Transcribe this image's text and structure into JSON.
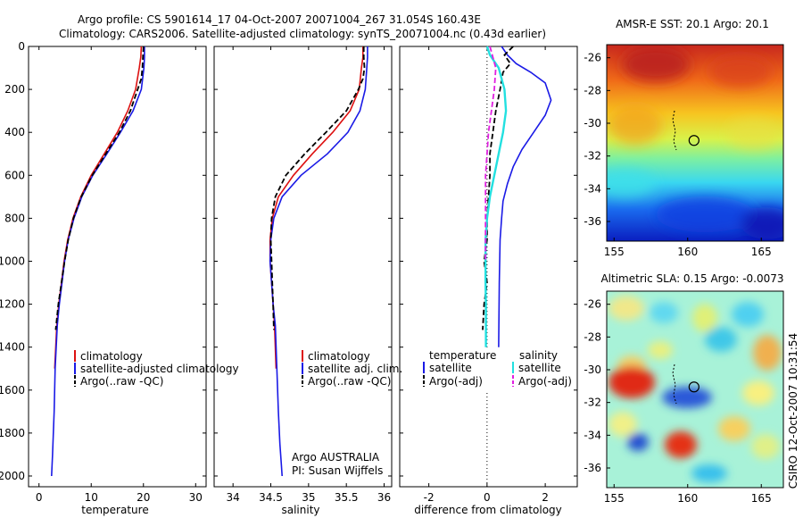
{
  "figure": {
    "title_line1": "Argo profile: CS 5901614_17 04-Oct-2007 20071004_267 31.054S 160.43E",
    "title_line2": "Climatology: CARS2006. Satellite-adjusted climatology: synTS_20071004.nc (0.43d earlier)",
    "footer_vertical": "CSIRO 12-Oct-2007 10:31:54"
  },
  "colors": {
    "climatology": "#dd1111",
    "satellite": "#1a1ae6",
    "argo": "#000000",
    "satellite_salinity": "#22e0e0",
    "argo_salinity_adj": "#e01ee0"
  },
  "chart_data": [
    {
      "type": "line",
      "title": "",
      "xlabel": "temperature",
      "ylabel": "",
      "xlim": [
        -2,
        32
      ],
      "ylim": [
        2050,
        0
      ],
      "x_ticks": [
        "0",
        "10",
        "20",
        "30"
      ],
      "y_ticks": [
        "0",
        "200",
        "400",
        "600",
        "800",
        "1000",
        "1200",
        "1400",
        "1600",
        "1800",
        "2000"
      ],
      "y_reversed": true,
      "legend": [
        "climatology",
        "satellite-adjusted climatology",
        "Argo(..raw -QC)"
      ],
      "legend_position": "bottom-right",
      "series": [
        {
          "name": "climatology",
          "x": [
            19.6,
            19.5,
            19.2,
            18.5,
            17.0,
            15.0,
            12.5,
            10.0,
            8.0,
            6.5,
            5.5,
            4.8,
            4.3,
            3.8,
            3.4,
            3.0
          ],
          "y": [
            0,
            50,
            100,
            200,
            300,
            400,
            500,
            600,
            700,
            800,
            900,
            1000,
            1100,
            1200,
            1300,
            1500
          ]
        },
        {
          "name": "satellite-adjusted climatology",
          "x": [
            20.2,
            20.2,
            20.1,
            19.6,
            18.0,
            15.6,
            13.0,
            10.3,
            8.2,
            6.7,
            5.6,
            4.9,
            4.4,
            3.9,
            3.5,
            3.1,
            2.9,
            2.6,
            2.4
          ],
          "y": [
            0,
            50,
            100,
            200,
            300,
            400,
            500,
            600,
            700,
            800,
            900,
            1000,
            1100,
            1200,
            1300,
            1500,
            1700,
            1900,
            2000
          ]
        },
        {
          "name": "Argo(..raw -QC)",
          "x": [
            20.0,
            19.9,
            19.8,
            19.6,
            18.9,
            17.5,
            15.4,
            12.8,
            10.2,
            8.1,
            6.6,
            5.6,
            4.9,
            4.3,
            3.7,
            3.2
          ],
          "y": [
            0,
            50,
            100,
            150,
            200,
            300,
            400,
            500,
            600,
            700,
            800,
            900,
            1000,
            1100,
            1200,
            1320
          ]
        }
      ]
    },
    {
      "type": "line",
      "title": "",
      "xlabel": "salinity",
      "ylabel": "",
      "xlim": [
        33.75,
        36.1
      ],
      "ylim": [
        2050,
        0
      ],
      "x_ticks": [
        "34",
        "34.5",
        "35",
        "35.5",
        "36"
      ],
      "y_reversed": true,
      "legend": [
        "climatology",
        "satellite adj. clim.",
        "Argo(..raw -QC)"
      ],
      "legend_position": "bottom-right",
      "annotation_line1": "Argo AUSTRALIA",
      "annotation_line2": "PI: Susan Wijffels",
      "series": [
        {
          "name": "climatology",
          "x": [
            35.72,
            35.72,
            35.7,
            35.67,
            35.55,
            35.32,
            35.05,
            34.8,
            34.6,
            34.52,
            34.49,
            34.49,
            34.51,
            34.53,
            34.55,
            34.57
          ],
          "y": [
            0,
            50,
            100,
            200,
            300,
            400,
            500,
            600,
            700,
            800,
            900,
            1000,
            1100,
            1200,
            1300,
            1500
          ]
        },
        {
          "name": "satellite adj. clim.",
          "x": [
            35.78,
            35.78,
            35.77,
            35.75,
            35.68,
            35.52,
            35.25,
            34.9,
            34.65,
            34.54,
            34.5,
            34.49,
            34.51,
            34.53,
            34.56,
            34.58,
            34.6,
            34.62,
            34.64,
            34.65
          ],
          "y": [
            0,
            50,
            100,
            200,
            300,
            400,
            500,
            600,
            700,
            800,
            900,
            1000,
            1100,
            1200,
            1300,
            1500,
            1700,
            1850,
            1950,
            2000
          ]
        },
        {
          "name": "Argo(..raw -QC)",
          "x": [
            35.73,
            35.73,
            35.74,
            35.72,
            35.66,
            35.5,
            35.23,
            34.95,
            34.7,
            34.56,
            34.51,
            34.5,
            34.51,
            34.52,
            34.53,
            34.54
          ],
          "y": [
            0,
            50,
            100,
            150,
            200,
            300,
            400,
            500,
            600,
            700,
            800,
            900,
            1000,
            1100,
            1200,
            1320
          ]
        }
      ]
    },
    {
      "type": "line",
      "title": "",
      "xlabel": "difference from climatology",
      "ylabel": "",
      "xlim": [
        -3,
        3.1
      ],
      "ylim": [
        2050,
        0
      ],
      "x_ticks": [
        "-2",
        "0",
        "2"
      ],
      "y_reversed": true,
      "legend_temperature_header": "temperature",
      "legend_salinity_header": "salinity",
      "legend": [
        "satellite",
        "Argo(-adj)",
        "satellite",
        "Argo(-adj)"
      ],
      "legend_position": "bottom",
      "zero_line": true,
      "series": [
        {
          "name": "temperature satellite",
          "x": [
            0.5,
            0.7,
            1.0,
            1.5,
            2.0,
            2.2,
            2.0,
            1.6,
            1.2,
            0.9,
            0.7,
            0.55,
            0.5,
            0.45,
            0.42,
            0.4
          ],
          "y": [
            0,
            40,
            80,
            120,
            170,
            250,
            320,
            400,
            480,
            560,
            640,
            720,
            800,
            900,
            1100,
            1400
          ]
        },
        {
          "name": "temperature Argo(-adj)",
          "x": [
            0.9,
            0.6,
            0.8,
            0.55,
            0.45,
            0.3,
            0.2,
            0.1,
            0.1,
            0.05,
            0.0,
            0.0,
            -0.1,
            0.0,
            -0.1,
            -0.15
          ],
          "y": [
            0,
            40,
            80,
            120,
            200,
            300,
            400,
            500,
            600,
            700,
            800,
            900,
            1000,
            1100,
            1200,
            1320
          ]
        },
        {
          "name": "salinity satellite",
          "x": [
            0.0,
            0.1,
            0.4,
            0.6,
            0.65,
            0.55,
            0.4,
            0.25,
            0.1,
            0.0,
            -0.05,
            -0.05,
            -0.05,
            -0.04,
            -0.04,
            -0.04
          ],
          "y": [
            0,
            40,
            100,
            200,
            300,
            400,
            500,
            600,
            700,
            800,
            900,
            1000,
            1100,
            1200,
            1300,
            1400
          ]
        },
        {
          "name": "salinity Argo(-adj)",
          "x": [
            0.1,
            0.3,
            0.25,
            0.15,
            0.05,
            0.0,
            -0.05,
            -0.05,
            -0.05,
            -0.05,
            -0.05
          ],
          "y": [
            0,
            100,
            200,
            300,
            400,
            500,
            600,
            700,
            800,
            900,
            1000
          ]
        }
      ]
    },
    {
      "type": "heatmap",
      "title": "AMSR-E SST: 20.1 Argo: 20.1",
      "xlim": [
        154.5,
        166.5
      ],
      "ylim": [
        -37.2,
        -25.2
      ],
      "x_ticks": [
        "155",
        "160",
        "165"
      ],
      "y_ticks": [
        "-26",
        "-28",
        "-30",
        "-32",
        "-34",
        "-36"
      ],
      "marker": {
        "lon": 160.43,
        "lat": -31.05
      },
      "field_trend": "warm (red) in north, cold (blue) in south"
    },
    {
      "type": "heatmap",
      "title": "Altimetric SLA: 0.15 Argo: -0.0073",
      "xlim": [
        154.5,
        166.5
      ],
      "ylim": [
        -37.2,
        -25.2
      ],
      "x_ticks": [
        "155",
        "160",
        "165"
      ],
      "y_ticks": [
        "-26",
        "-28",
        "-30",
        "-32",
        "-34",
        "-36"
      ],
      "marker": {
        "lon": 160.43,
        "lat": -31.05
      },
      "field_trend": "mixed eddy field"
    }
  ]
}
